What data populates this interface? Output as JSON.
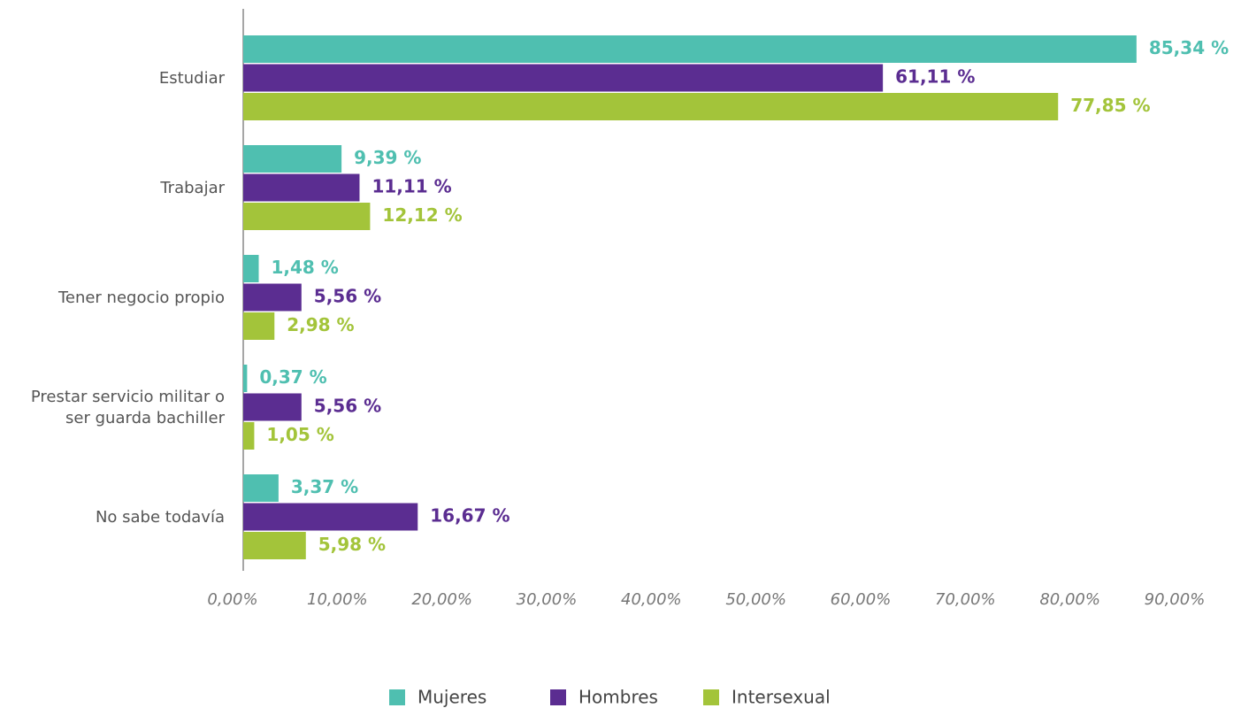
{
  "chart_data": {
    "type": "bar",
    "orientation": "horizontal",
    "categories": [
      "Estudiar",
      "Trabajar",
      "Tener negocio propio",
      "Prestar servicio militar o ser guarda bachiller",
      "No sabe todavía"
    ],
    "series": [
      {
        "name": "Mujeres",
        "color": "#4fbfb0",
        "values": [
          85.34,
          9.39,
          1.48,
          0.37,
          3.37
        ],
        "value_labels": [
          "85,34 %",
          "9,39 %",
          "1,48 %",
          "0,37 %",
          "3,37 %"
        ]
      },
      {
        "name": "Hombres",
        "color": "#5b2d91",
        "values": [
          61.11,
          11.11,
          5.56,
          5.56,
          16.67
        ],
        "value_labels": [
          "61,11 %",
          "11,11 %",
          "5,56 %",
          "5,56 %",
          "16,67 %"
        ]
      },
      {
        "name": "Intersexual",
        "color": "#a3c43a",
        "values": [
          77.85,
          12.12,
          2.98,
          1.05,
          5.98
        ],
        "value_labels": [
          "77,85 %",
          "12,12 %",
          "2,98 %",
          "1,05 %",
          "5,98 %"
        ]
      }
    ],
    "xlim": [
      0,
      90
    ],
    "xticks": [
      {
        "value": 0,
        "label": "0,00%"
      },
      {
        "value": 10,
        "label": "10,00%"
      },
      {
        "value": 20,
        "label": "20,00%"
      },
      {
        "value": 30,
        "label": "30,00%"
      },
      {
        "value": 40,
        "label": "40,00%"
      },
      {
        "value": 50,
        "label": "50,00%"
      },
      {
        "value": 60,
        "label": "60,00%"
      },
      {
        "value": 70,
        "label": "70,00%"
      },
      {
        "value": 80,
        "label": "80,00%"
      },
      {
        "value": 90,
        "label": "90,00%"
      }
    ],
    "grid": false,
    "legend": "bottom"
  }
}
